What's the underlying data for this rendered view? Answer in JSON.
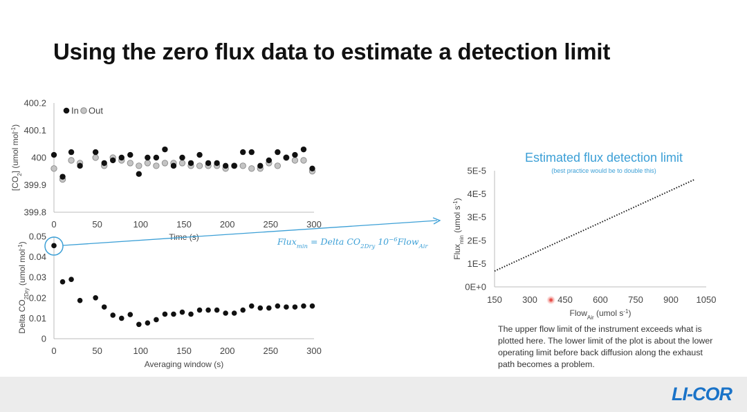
{
  "slide": {
    "title": "Using the zero flux data to estimate a detection limit",
    "logo": "LI-COR",
    "note": "The upper flow limit of the instrument exceeds what is plotted here. The lower limit of the plot is about the lower operating limit before back diffusion along the exhaust path becomes a problem.",
    "equation": {
      "main": "Flux",
      "sub1": "min",
      "mid1": " = Delta CO",
      "sub2": "2Dry",
      "mid2": " 10",
      "sup": "−6",
      "mid3": "Flow",
      "sub3": "Air"
    }
  },
  "colors": {
    "dark_points": "#111111",
    "light_points": "#c4c4c4",
    "accent": "#3b9fd6",
    "trend": "#222222",
    "highlight": "#e8504a"
  },
  "chart_data": [
    {
      "type": "scatter",
      "title": "",
      "xlabel": "Time (s)",
      "ylabel": {
        "pre": "[CO",
        "sub": "2",
        "mid": "] (umol mol",
        "sup": "-1",
        "post": ")"
      },
      "xlim": [
        0,
        300
      ],
      "ylim": [
        399.8,
        400.2
      ],
      "xticks": [
        "0",
        "50",
        "100",
        "150",
        "200",
        "250",
        "300"
      ],
      "yticks": [
        "399.8",
        "399.9",
        "400",
        "400.1",
        "400.2"
      ],
      "legend": "top-left",
      "series": [
        {
          "name": "In",
          "style": "dark",
          "x": [
            0,
            10,
            20,
            30,
            48,
            58,
            68,
            78,
            88,
            98,
            108,
            118,
            128,
            138,
            148,
            158,
            168,
            178,
            188,
            198,
            208,
            218,
            228,
            238,
            248,
            258,
            268,
            278,
            288,
            298
          ],
          "y": [
            400.01,
            399.93,
            400.02,
            399.97,
            400.02,
            399.98,
            399.99,
            400.0,
            400.01,
            399.94,
            400.0,
            400.0,
            400.03,
            399.97,
            400.0,
            399.98,
            400.01,
            399.98,
            399.98,
            399.97,
            399.97,
            400.02,
            400.02,
            399.97,
            399.99,
            400.02,
            400.0,
            400.01,
            400.03,
            399.96
          ]
        },
        {
          "name": "Out",
          "style": "light",
          "x": [
            0,
            10,
            20,
            30,
            48,
            58,
            68,
            78,
            88,
            98,
            108,
            118,
            128,
            138,
            148,
            158,
            168,
            178,
            188,
            198,
            208,
            218,
            228,
            238,
            248,
            258,
            268,
            278,
            288,
            298
          ],
          "y": [
            399.96,
            399.92,
            399.99,
            399.98,
            400.0,
            399.97,
            400.0,
            399.99,
            399.98,
            399.97,
            399.98,
            399.97,
            399.98,
            399.98,
            399.98,
            399.97,
            399.97,
            399.97,
            399.97,
            399.96,
            399.97,
            399.97,
            399.96,
            399.96,
            399.98,
            399.97,
            400.0,
            399.99,
            399.99,
            399.95
          ]
        }
      ]
    },
    {
      "type": "scatter",
      "title": "",
      "xlabel": "Averaging window (s)",
      "ylabel": {
        "pre": "Delta CO",
        "sub": "2Dry",
        "mid": " (umol mol",
        "sup": "-1",
        "post": ")"
      },
      "xlim": [
        0,
        300
      ],
      "ylim": [
        0,
        0.05
      ],
      "xticks": [
        "0",
        "50",
        "100",
        "150",
        "200",
        "250",
        "300"
      ],
      "yticks": [
        "0",
        "0.01",
        "0.02",
        "0.03",
        "0.04",
        "0.05"
      ],
      "series": [
        {
          "name": "",
          "style": "dark",
          "x": [
            0,
            10,
            20,
            30,
            48,
            58,
            68,
            78,
            88,
            98,
            108,
            118,
            128,
            138,
            148,
            158,
            168,
            178,
            188,
            198,
            208,
            218,
            228,
            238,
            248,
            258,
            268,
            278,
            288,
            298
          ],
          "y": [
            0.0455,
            0.0278,
            0.029,
            0.0187,
            0.02,
            0.0155,
            0.0115,
            0.01,
            0.0118,
            0.007,
            0.0077,
            0.0093,
            0.012,
            0.012,
            0.013,
            0.012,
            0.014,
            0.014,
            0.014,
            0.0125,
            0.0125,
            0.014,
            0.016,
            0.015,
            0.015,
            0.016,
            0.0155,
            0.0155,
            0.016,
            0.016
          ]
        }
      ],
      "highlight_point": {
        "x": 0,
        "y": 0.0455
      }
    },
    {
      "type": "line",
      "title": "Estimated flux detection limit",
      "subtitle": "(best practice would be to double this)",
      "xlabel": {
        "pre": "Flow",
        "sub": "Air",
        "post": " (umol s",
        "sup": "-1",
        "end": ")"
      },
      "ylabel": {
        "pre": "Flux",
        "sub": "min",
        "post": " (umol s",
        "sup": "-1",
        "end": ")"
      },
      "xlim": [
        150,
        1050
      ],
      "ylim": [
        0,
        5e-05
      ],
      "xticks": [
        "150",
        "300",
        "450",
        "600",
        "750",
        "900",
        "1050"
      ],
      "yticks": [
        "0E+0",
        "1E-5",
        "2E-5",
        "3E-5",
        "4E-5",
        "5E-5"
      ],
      "series": [
        {
          "name": "",
          "style": "dotted",
          "x": [
            150,
            1000
          ],
          "y": [
            6.8e-06,
            4.62e-05
          ]
        }
      ],
      "marker": {
        "x": 390,
        "y": 0
      }
    }
  ]
}
